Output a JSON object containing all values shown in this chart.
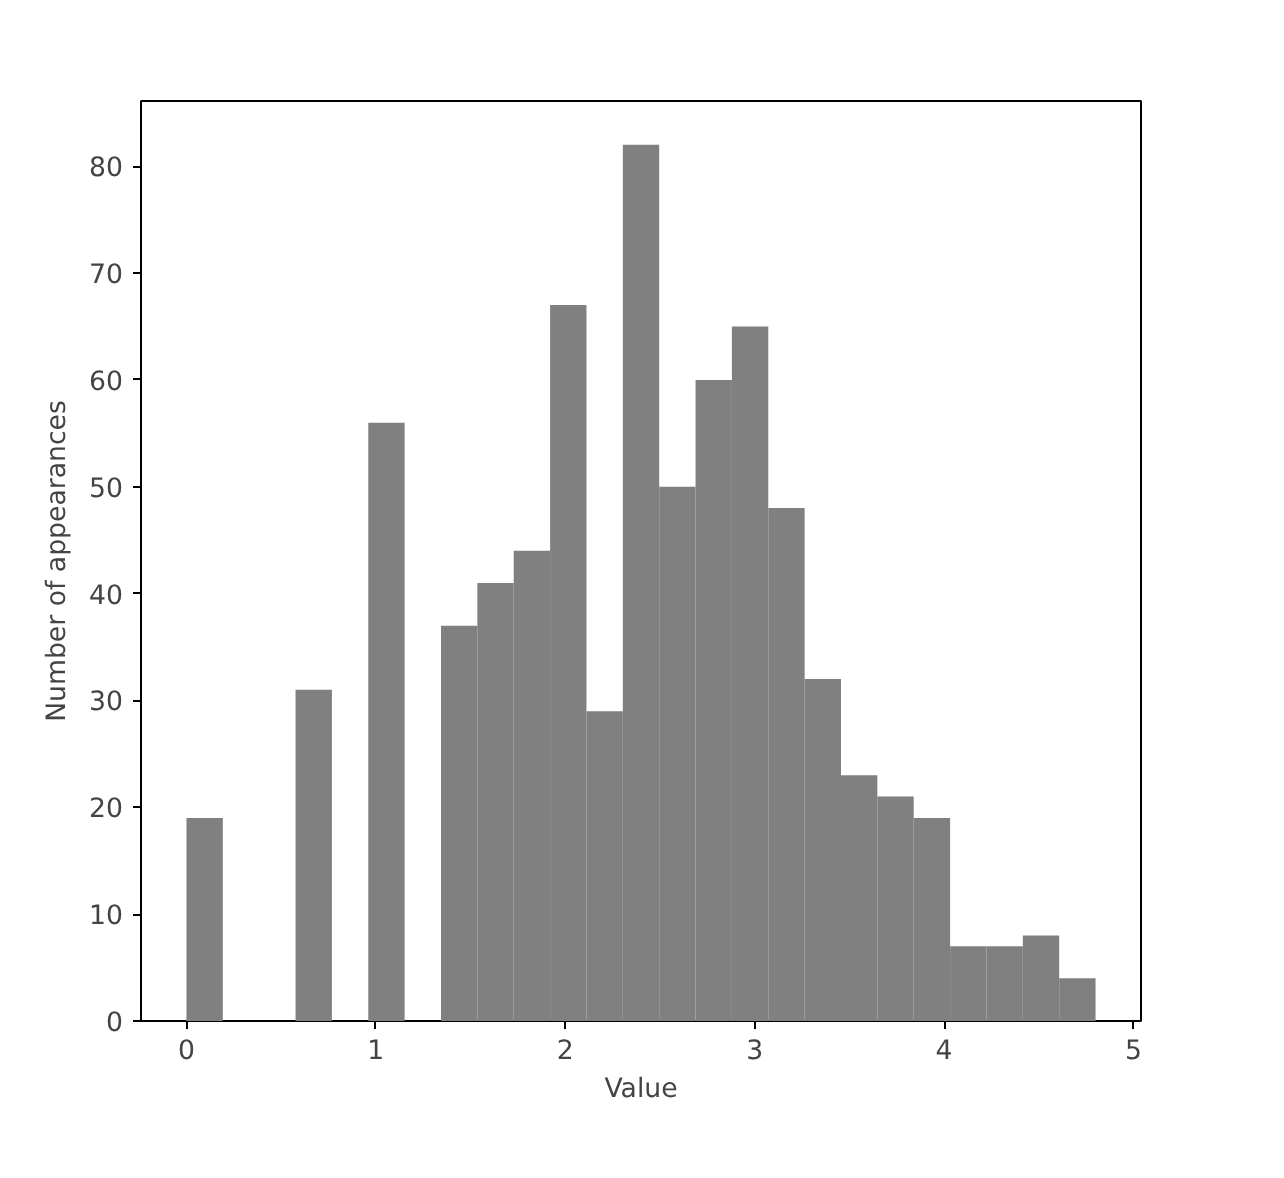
{
  "chart_data": {
    "type": "histogram",
    "xlabel": "Value",
    "ylabel": "Number of appearances",
    "bins": [
      0,
      0.192,
      0.384,
      0.576,
      0.768,
      0.96,
      1.152,
      1.344,
      1.536,
      1.728,
      1.92,
      2.112,
      2.304,
      2.496,
      2.688,
      2.88,
      3.072,
      3.264,
      3.456,
      3.648,
      3.84,
      4.032,
      4.224,
      4.416,
      4.608,
      4.8
    ],
    "values": [
      19,
      0,
      0,
      31,
      0,
      56,
      0,
      37,
      41,
      44,
      67,
      29,
      82,
      50,
      60,
      65,
      48,
      32,
      23,
      21,
      19,
      7,
      7,
      8,
      4
    ],
    "color": "#808080",
    "xlim": [
      -0.24,
      5.04
    ],
    "ylim": [
      0,
      86.1
    ],
    "xticks": [
      0,
      1,
      2,
      3,
      4,
      5
    ],
    "yticks": [
      0,
      10,
      20,
      30,
      40,
      50,
      60,
      70,
      80
    ],
    "grid": false
  }
}
